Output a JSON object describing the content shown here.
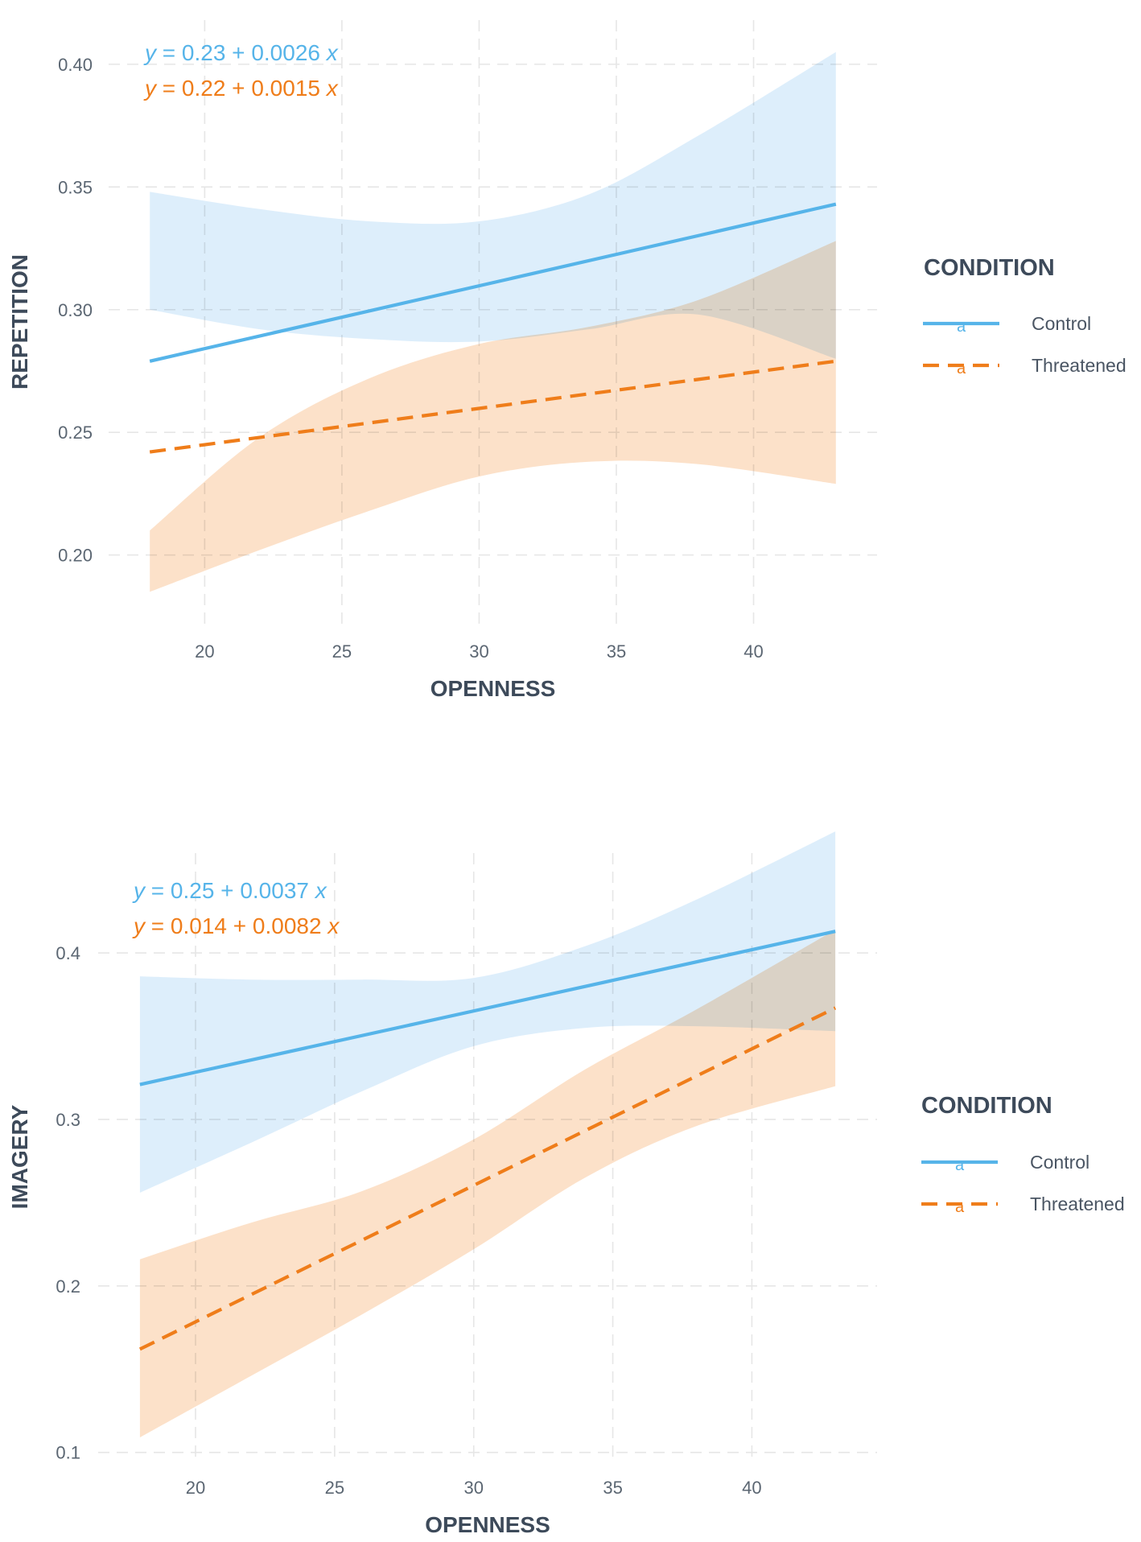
{
  "colors": {
    "control": "#56b4e9",
    "threatened": "#e69f00",
    "threatened_line": "#ef7d1a",
    "control_band": "#d7ebfa",
    "threatened_band": "#fbdcbf"
  },
  "chart_data": [
    {
      "type": "line",
      "panel": "top",
      "xlabel": "OPENNESS",
      "ylabel": "REPETITION",
      "xlim": [
        16.5,
        44.5
      ],
      "ylim": [
        0.172,
        0.418
      ],
      "x_ticks": [
        20,
        25,
        30,
        35,
        40
      ],
      "x_tick_labels": [
        "20",
        "25",
        "30",
        "35",
        "40"
      ],
      "y_ticks": [
        0.2,
        0.25,
        0.3,
        0.35,
        0.4
      ],
      "y_tick_labels": [
        "0.20",
        "0.25",
        "0.30",
        "0.35",
        "0.40"
      ],
      "grid": true,
      "equations": [
        {
          "series": "Control",
          "text": "y = 0.23 + 0.0026 x",
          "y": "y",
          "rest": " = 0.23 + 0.0026 ",
          "x": "x"
        },
        {
          "series": "Threatened",
          "text": "y = 0.22 + 0.0015 x",
          "y": "y",
          "rest": " = 0.22 + 0.0015 ",
          "x": "x"
        }
      ],
      "series": [
        {
          "name": "Control",
          "linetype": "solid",
          "line": {
            "x": [
              18,
              43
            ],
            "y": [
              0.279,
              0.343
            ]
          },
          "band": {
            "x": [
              18,
              22,
              26,
              30,
              34,
              38,
              43
            ],
            "lower": [
              0.3,
              0.292,
              0.288,
              0.287,
              0.292,
              0.298,
              0.28
            ],
            "upper": [
              0.348,
              0.341,
              0.336,
              0.336,
              0.347,
              0.371,
              0.405
            ]
          }
        },
        {
          "name": "Threatened",
          "linetype": "dashed",
          "line": {
            "x": [
              18,
              43
            ],
            "y": [
              0.242,
              0.279
            ]
          },
          "band": {
            "x": [
              18,
              22,
              26,
              30,
              34,
              38,
              43
            ],
            "lower": [
              0.185,
              0.202,
              0.218,
              0.232,
              0.238,
              0.237,
              0.229
            ],
            "upper": [
              0.21,
              0.248,
              0.272,
              0.286,
              0.293,
              0.304,
              0.328
            ]
          }
        }
      ],
      "legend": {
        "title": "CONDITION",
        "position": "right",
        "glyph": "a",
        "items": [
          "Control",
          "Threatened"
        ]
      }
    },
    {
      "type": "line",
      "panel": "bottom",
      "xlabel": "OPENNESS",
      "ylabel": "IMAGERY",
      "xlim": [
        16.5,
        44.5
      ],
      "ylim": [
        0.095,
        0.46
      ],
      "x_ticks": [
        20,
        25,
        30,
        35,
        40
      ],
      "x_tick_labels": [
        "20",
        "25",
        "30",
        "35",
        "40"
      ],
      "y_ticks": [
        0.1,
        0.2,
        0.3,
        0.4
      ],
      "y_tick_labels": [
        "0.1",
        "0.2",
        "0.3",
        "0.4"
      ],
      "grid": true,
      "equations": [
        {
          "series": "Control",
          "text": "y = 0.25 + 0.0037 x",
          "y": "y",
          "rest": " = 0.25 + 0.0037 ",
          "x": "x"
        },
        {
          "series": "Threatened",
          "text": "y = 0.014 + 0.0082 x",
          "y": "y",
          "rest": " = 0.014 + 0.0082 ",
          "x": "x"
        }
      ],
      "series": [
        {
          "name": "Control",
          "linetype": "solid",
          "line": {
            "x": [
              18,
              43
            ],
            "y": [
              0.321,
              0.413
            ]
          },
          "band": {
            "x": [
              18,
              22,
              26,
              30,
              34,
              38,
              43
            ],
            "lower": [
              0.256,
              0.286,
              0.317,
              0.344,
              0.355,
              0.356,
              0.353
            ],
            "upper": [
              0.386,
              0.384,
              0.384,
              0.385,
              0.404,
              0.432,
              0.473
            ]
          }
        },
        {
          "name": "Threatened",
          "linetype": "dashed",
          "line": {
            "x": [
              18,
              43
            ],
            "y": [
              0.162,
              0.367
            ]
          },
          "band": {
            "x": [
              18,
              22,
              26,
              30,
              34,
              38,
              43
            ],
            "lower": [
              0.109,
              0.146,
              0.183,
              0.222,
              0.265,
              0.296,
              0.32
            ],
            "upper": [
              0.216,
              0.238,
              0.257,
              0.288,
              0.33,
              0.366,
              0.414
            ]
          }
        }
      ],
      "legend": {
        "title": "CONDITION",
        "position": "right",
        "glyph": "a",
        "items": [
          "Control",
          "Threatened"
        ]
      }
    }
  ]
}
